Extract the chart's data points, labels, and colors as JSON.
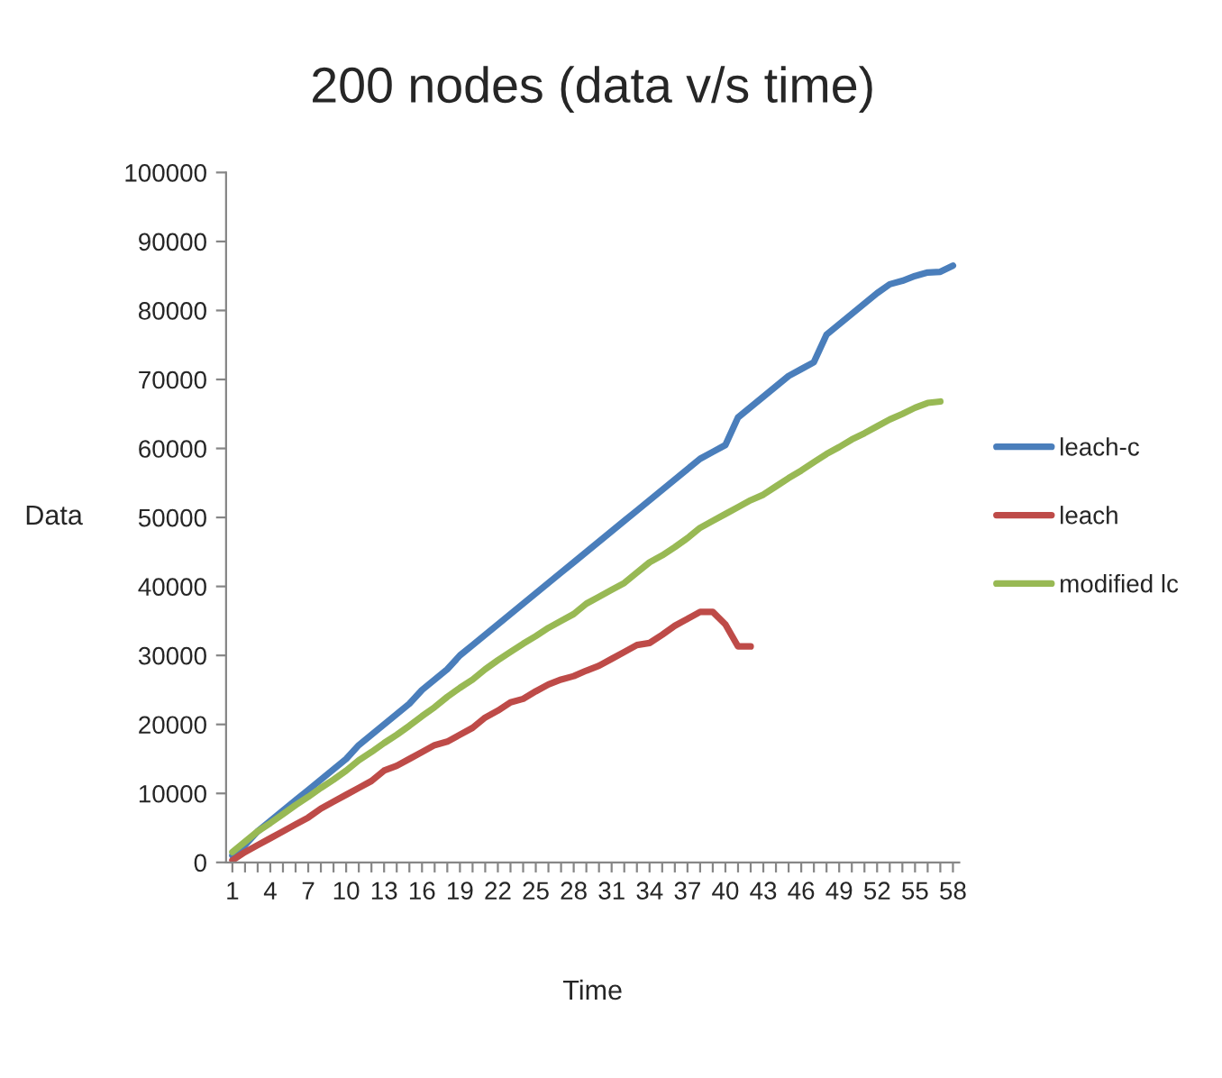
{
  "chart_data": {
    "type": "line",
    "title": "200 nodes (data v/s time)",
    "xlabel": "Time",
    "ylabel": "Data",
    "categories": [
      "1",
      null,
      null,
      "4",
      null,
      null,
      "7",
      null,
      null,
      "10",
      null,
      null,
      "13",
      null,
      null,
      "16",
      null,
      null,
      "19",
      null,
      null,
      "22",
      null,
      null,
      "25",
      null,
      null,
      "28",
      null,
      null,
      "31",
      null,
      null,
      "34",
      null,
      null,
      "37",
      null,
      null,
      "40",
      null,
      null,
      "43",
      null,
      null,
      "46",
      null,
      null,
      "49",
      null,
      null,
      "52",
      null,
      null,
      "55",
      null,
      null,
      "58"
    ],
    "series": [
      {
        "name": "leach-c",
        "color": "#4a7ebb",
        "values": [
          1000,
          2500,
          4500,
          6000,
          7500,
          9000,
          10500,
          12000,
          13500,
          15000,
          17000,
          18500,
          20000,
          21500,
          23000,
          25000,
          26500,
          28000,
          30000,
          31500,
          33000,
          34500,
          36000,
          37500,
          39000,
          40500,
          42000,
          43500,
          45000,
          46500,
          48000,
          49500,
          51000,
          52500,
          54000,
          55500,
          57000,
          58500,
          59500,
          60500,
          64500,
          66000,
          67500,
          69000,
          70500,
          71500,
          72500,
          76500,
          78000,
          79500,
          81000,
          82500,
          83800,
          84300,
          85000,
          85500,
          85600,
          86500
        ]
      },
      {
        "name": "leach",
        "color": "#be4b48",
        "values": [
          300,
          1500,
          2500,
          3500,
          4500,
          5500,
          6500,
          7800,
          8800,
          9800,
          10800,
          11800,
          13300,
          14000,
          15000,
          16000,
          17000,
          17500,
          18500,
          19500,
          21000,
          22000,
          23200,
          23700,
          24800,
          25800,
          26500,
          27000,
          27800,
          28500,
          29500,
          30500,
          31500,
          31800,
          33000,
          34300,
          35300,
          36300,
          36300,
          34500,
          31300,
          31300,
          null,
          null,
          null,
          null,
          null,
          null,
          null,
          null,
          null,
          null,
          null,
          null,
          null,
          null,
          null,
          null
        ]
      },
      {
        "name": "modified lc",
        "color": "#98b954",
        "values": [
          1500,
          3000,
          4500,
          5700,
          7000,
          8300,
          9500,
          10800,
          12000,
          13300,
          14800,
          16000,
          17300,
          18500,
          19800,
          21200,
          22500,
          24000,
          25300,
          26500,
          28000,
          29300,
          30500,
          31700,
          32800,
          34000,
          35000,
          36000,
          37500,
          38500,
          39500,
          40500,
          42000,
          43500,
          44500,
          45700,
          47000,
          48500,
          49500,
          50500,
          51500,
          52500,
          53300,
          54500,
          55700,
          56800,
          58000,
          59200,
          60200,
          61300,
          62200,
          63200,
          64200,
          65000,
          65900,
          66600,
          66800,
          null
        ]
      }
    ],
    "ylim": [
      0,
      100000
    ],
    "yticks": [
      0,
      10000,
      20000,
      30000,
      40000,
      50000,
      60000,
      70000,
      80000,
      90000,
      100000
    ],
    "legend": "right"
  }
}
